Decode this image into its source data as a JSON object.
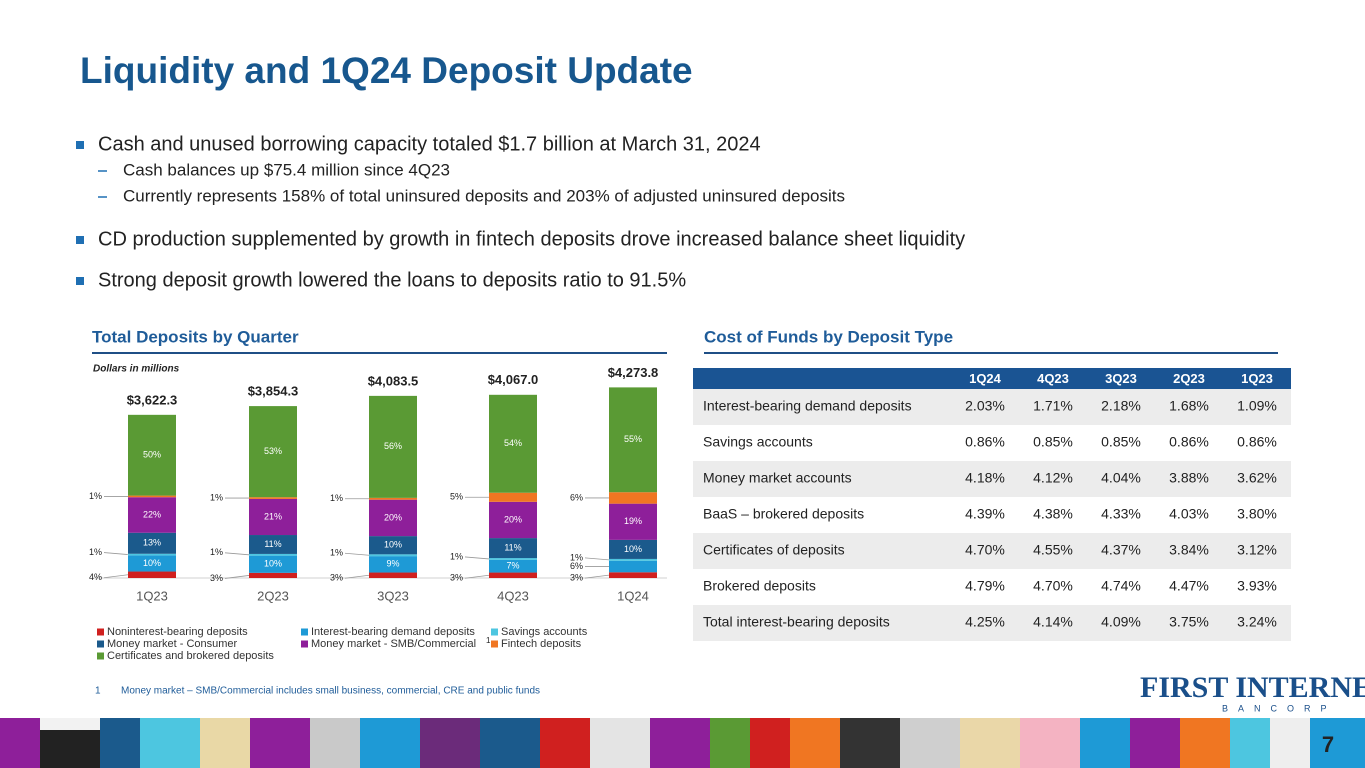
{
  "title": "Liquidity and 1Q24 Deposit Update",
  "bullets": [
    {
      "text": "Cash and unused borrowing capacity totaled $1.7 billion at March 31, 2024",
      "subs": [
        "Cash balances up $75.4 million since 4Q23",
        "Currently represents 158% of total uninsured deposits and 203% of adjusted uninsured deposits"
      ]
    },
    {
      "text": "CD production supplemented by growth in fintech deposits drove increased balance sheet liquidity"
    },
    {
      "text": "Strong deposit growth lowered the loans to deposits ratio to 91.5%"
    }
  ],
  "chart_data": {
    "type": "bar",
    "stacked": true,
    "title": "Total Deposits by Quarter",
    "subtitle": "Dollars in millions",
    "categories": [
      "1Q23",
      "2Q23",
      "3Q23",
      "4Q23",
      "1Q24"
    ],
    "series": [
      {
        "name": "Noninterest-bearing deposits",
        "color": "#d0201f",
        "values": [
          4,
          3,
          3,
          3,
          3
        ],
        "value_labels": [
          "4%",
          "3%",
          "3%",
          "3%",
          "3%"
        ]
      },
      {
        "name": "Interest-bearing demand deposits",
        "color": "#1e9ad6",
        "values": [
          10,
          10,
          9,
          7,
          6
        ],
        "value_labels": [
          "10%",
          "10%",
          "9%",
          "7%",
          "6%"
        ]
      },
      {
        "name": "Savings accounts",
        "color": "#4dc6e0",
        "values": [
          1,
          1,
          1,
          1,
          1
        ],
        "value_labels": [
          "1%",
          "1%",
          "1%",
          "1%",
          "1%"
        ]
      },
      {
        "name": "Money market - Consumer",
        "color": "#1b5a8c",
        "values": [
          13,
          11,
          10,
          11,
          10
        ],
        "value_labels": [
          "13%",
          "11%",
          "10%",
          "11%",
          "10%"
        ]
      },
      {
        "name": "Money market - SMB/Commercial",
        "color": "#8e1f9a",
        "values": [
          22,
          21,
          20,
          20,
          19
        ],
        "value_labels": [
          "22%",
          "21%",
          "20%",
          "20%",
          "19%"
        ]
      },
      {
        "name": "Fintech deposits",
        "color": "#f07622",
        "values": [
          1,
          1,
          1,
          5,
          6
        ],
        "value_labels": [
          "1%",
          "1%",
          "1%",
          "5%",
          "6%"
        ]
      },
      {
        "name": "Certificates and brokered deposits",
        "color": "#5a9a34",
        "values": [
          50,
          53,
          56,
          54,
          55
        ],
        "value_labels": [
          "50%",
          "53%",
          "56%",
          "54%",
          "55%"
        ]
      }
    ],
    "totals": {
      "values": [
        3622.3,
        3854.3,
        4083.5,
        4067.0,
        4273.8
      ],
      "value_labels": [
        "$3,622.3",
        "$3,854.3",
        "$4,083.5",
        "$4,067.0",
        "$4,273.8"
      ]
    },
    "legend_footnote_marker": "1",
    "footnote_number": "1",
    "footnote": "Money market – SMB/Commercial includes small business, commercial, CRE and public funds"
  },
  "table": {
    "title": "Cost of Funds by Deposit Type",
    "columns": [
      "1Q24",
      "4Q23",
      "3Q23",
      "2Q23",
      "1Q23"
    ],
    "rows": [
      [
        "Interest-bearing demand deposits",
        "2.03%",
        "1.71%",
        "2.18%",
        "1.68%",
        "1.09%"
      ],
      [
        "Savings accounts",
        "0.86%",
        "0.85%",
        "0.85%",
        "0.86%",
        "0.86%"
      ],
      [
        "Money market accounts",
        "4.18%",
        "4.12%",
        "4.04%",
        "3.88%",
        "3.62%"
      ],
      [
        "BaaS – brokered deposits",
        "4.39%",
        "4.38%",
        "4.33%",
        "4.03%",
        "3.80%"
      ],
      [
        "Certificates of deposits",
        "4.70%",
        "4.55%",
        "4.37%",
        "3.84%",
        "3.12%"
      ],
      [
        "Brokered deposits",
        "4.79%",
        "4.70%",
        "4.74%",
        "4.47%",
        "3.93%"
      ],
      [
        "Total interest-bearing deposits",
        "4.25%",
        "4.14%",
        "4.09%",
        "3.75%",
        "3.24%"
      ]
    ]
  },
  "logo": {
    "name": "FIRST INTERNET",
    "sub": "BANCORP"
  },
  "page_number": "7"
}
